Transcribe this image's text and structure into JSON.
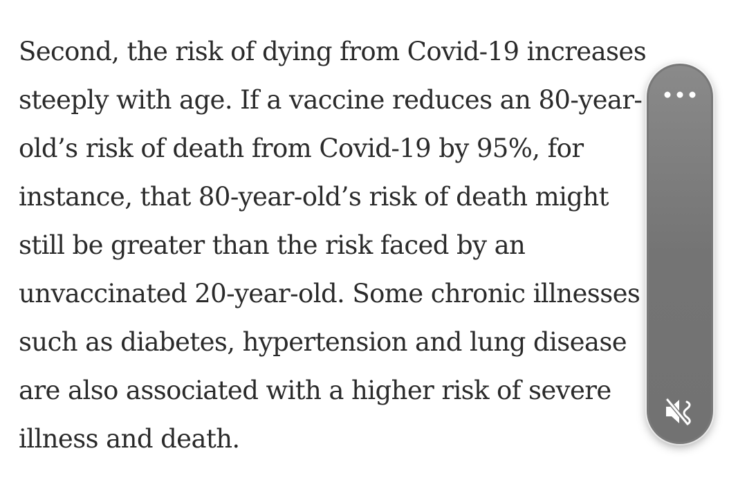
{
  "article": {
    "paragraph_lines": [
      "Second, the risk of dying from Covid-19 increases",
      "steeply with age. If a vaccine reduces an 80-year-",
      "old’s risk of death from Covid-19 by 95%, for",
      "instance, that 80-year-old’s risk of death might",
      "still be greater than the risk faced by an",
      "unvaccinated 20-year-old. Some chronic illnesses",
      "such as diabetes, hypertension and lung disease",
      "are also associated with a higher risk of severe",
      "illness and death."
    ]
  },
  "media_panel": {
    "more_icon": "ellipsis-icon",
    "mute_icon": "speaker-muted-icon",
    "colors": {
      "panel": "#787878",
      "icon": "#ffffff"
    }
  }
}
